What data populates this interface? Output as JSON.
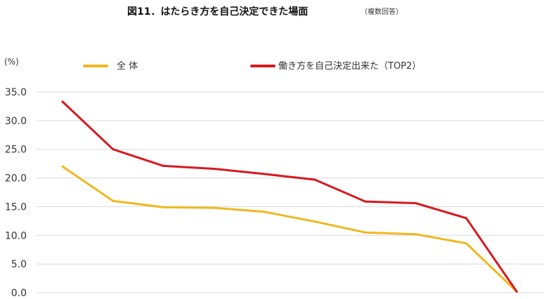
{
  "title": "図11．はたらき方を自己決定できた場面",
  "subtitle": "（複数回答）",
  "unit_label": "(%)",
  "colors": {
    "series_total": "#f0b81d",
    "series_top2": "#d71920",
    "grid": "#d9d9d9"
  },
  "chart_data": {
    "type": "line",
    "title": "図11．はたらき方を自己決定できた場面",
    "subtitle": "（複数回答）",
    "xlabel": "",
    "ylabel": "(%)",
    "ylim": [
      0,
      35
    ],
    "yticks": [
      "35.0",
      "30.0",
      "25.0",
      "20.0",
      "15.0",
      "10.0",
      "5.0",
      "0.0"
    ],
    "x": [
      1,
      2,
      3,
      4,
      5,
      6,
      7,
      8,
      9,
      10
    ],
    "grid": true,
    "legend_position": "top",
    "series": [
      {
        "name": "全 体",
        "color": "#f0b81d",
        "values": [
          22.0,
          16.0,
          14.9,
          14.8,
          14.1,
          12.4,
          10.5,
          10.2,
          8.6,
          0.2
        ]
      },
      {
        "name": "働き方を自己決定出来た（TOP2）",
        "color": "#d71920",
        "values": [
          33.3,
          25.0,
          22.1,
          21.6,
          20.7,
          19.7,
          15.9,
          15.6,
          13.0,
          0.2
        ]
      }
    ]
  }
}
